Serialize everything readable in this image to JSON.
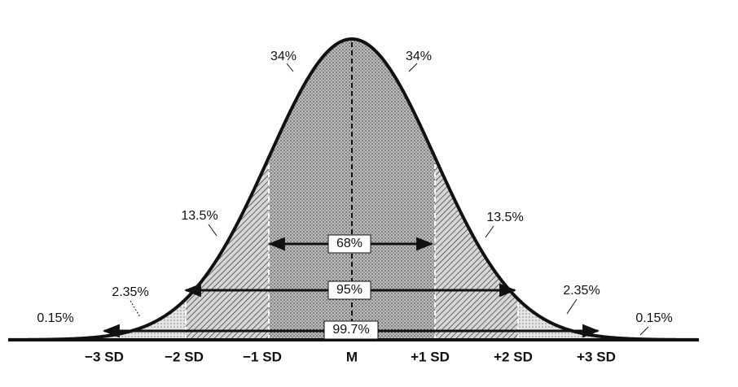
{
  "region_labels": [
    "34%",
    "34%",
    "13.5%",
    "13.5%",
    "2.35%",
    "2.35%",
    "0.15%",
    "0.15%"
  ],
  "range_labels": [
    "68%",
    "95%",
    "99.7%"
  ],
  "axis_labels": [
    "−3 SD",
    "−2 SD",
    "−1 SD",
    "M",
    "+1 SD",
    "+2 SD",
    "+3 SD"
  ]
}
